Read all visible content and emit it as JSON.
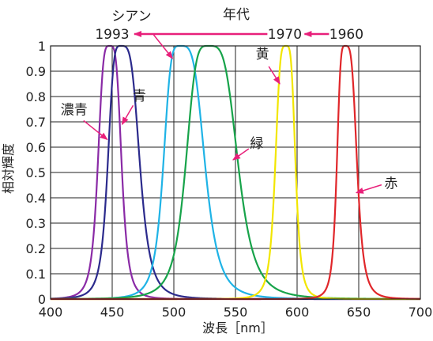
{
  "chart_data": {
    "type": "line",
    "xlabel": "波長［nm］",
    "ylabel": "相対輝度",
    "xlim": [
      400,
      700
    ],
    "ylim": [
      0,
      1
    ],
    "x_ticks": [
      "400",
      "450",
      "500",
      "550",
      "600",
      "650",
      "700"
    ],
    "y_ticks": [
      "0",
      "0.1",
      "0.2",
      "0.3",
      "0.4",
      "0.5",
      "0.6",
      "0.7",
      "0.8",
      "0.9",
      "1"
    ],
    "grid": true,
    "series": [
      {
        "name": "濃青",
        "color": "#8a2aa6",
        "peak": 448,
        "left_width": 10,
        "right_width": 10,
        "peak_value": 1.0
      },
      {
        "name": "青",
        "color": "#2b2a8c",
        "peak": 457,
        "left_width": 11,
        "right_width": 16,
        "peak_value": 1.0
      },
      {
        "name": "シアン",
        "color": "#1fb3e6",
        "peak": 505,
        "left_width": 14,
        "right_width": 21,
        "peak_value": 1.0
      },
      {
        "name": "緑",
        "color": "#17a34a",
        "peak": 528,
        "left_width": 19,
        "right_width": 25,
        "peak_value": 1.0
      },
      {
        "name": "黄",
        "color": "#f2e600",
        "peak": 591,
        "left_width": 9,
        "right_width": 8,
        "peak_value": 1.0
      },
      {
        "name": "赤",
        "color": "#e0262a",
        "peak": 639,
        "left_width": 7,
        "right_width": 10,
        "peak_value": 1.0
      }
    ],
    "annotations": {
      "era_title": "年代",
      "years": [
        "1993",
        "1970",
        "1960"
      ],
      "year_positions_nm": [
        450,
        590,
        640
      ],
      "pointer_color": "#e8207a",
      "labels": [
        {
          "series": "濃青",
          "x_data": 446,
          "y_data": 0.63,
          "text": "濃青"
        },
        {
          "series": "青",
          "x_data": 458,
          "y_data": 0.69,
          "text": "青"
        },
        {
          "series": "シアン",
          "x_data": 499,
          "y_data": 0.95,
          "text": "シアン"
        },
        {
          "series": "緑",
          "x_data": 548,
          "y_data": 0.55,
          "text": "緑"
        },
        {
          "series": "黄",
          "x_data": 586,
          "y_data": 0.85,
          "text": "黄"
        },
        {
          "series": "赤",
          "x_data": 648,
          "y_data": 0.42,
          "text": "赤"
        }
      ]
    }
  }
}
